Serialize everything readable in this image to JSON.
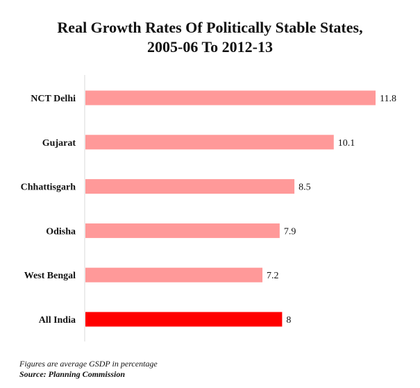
{
  "chart_data": {
    "type": "bar",
    "orientation": "horizontal",
    "title": "Real Growth Rates Of Politically Stable States,",
    "subtitle": "2005-06 To 2012-13",
    "categories": [
      "NCT Delhi",
      "Gujarat",
      "Chhattisgarh",
      "Odisha",
      "West Bengal",
      "All India"
    ],
    "values": [
      11.8,
      10.1,
      8.5,
      7.9,
      7.2,
      8
    ],
    "value_labels": [
      "11.8",
      "10.1",
      "8.5",
      "7.9",
      "7.2",
      "8"
    ],
    "colors": [
      "#ff9999",
      "#ff9999",
      "#ff9999",
      "#ff9999",
      "#ff9999",
      "#ff0000"
    ],
    "xlim": [
      0,
      11.8
    ],
    "grid": false,
    "legend": "none"
  },
  "footnote": {
    "note": "Figures are average GSDP in percentage",
    "source": "Source: Planning Commission"
  }
}
